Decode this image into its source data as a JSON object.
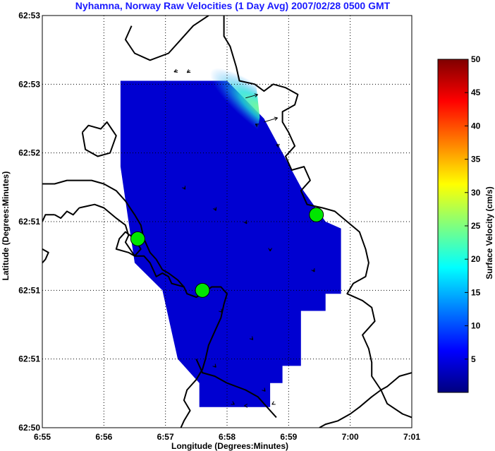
{
  "chart_data": {
    "type": "heatmap",
    "title": "Nyhamna, Norway Raw Velocities (1 Day Avg) 2007/02/28 0500 GMT",
    "xlabel": "Longitude (Degrees:Minutes)",
    "ylabel": "Latitude (Degrees:Minutes)",
    "x_ticks": [
      "6:55",
      "6:56",
      "6:57",
      "6:58",
      "6:59",
      "7:00",
      "7:01"
    ],
    "y_ticks": [
      "62:50",
      "62:51",
      "62:51",
      "62:51",
      "62:52",
      "62:53",
      "62:53"
    ],
    "xlim": [
      0,
      6
    ],
    "ylim": [
      0,
      6
    ],
    "grid": true,
    "colorbar": {
      "label": "Surface Velocity (cm/s)",
      "ticks": [
        "5",
        "10",
        "15",
        "20",
        "25",
        "30",
        "35",
        "40",
        "45",
        "50"
      ],
      "range": [
        0,
        50
      ],
      "colormap": [
        "#00007f",
        "#0000ff",
        "#007fff",
        "#00ffff",
        "#7fff7f",
        "#ffff00",
        "#ff7f00",
        "#ff0000",
        "#7f0000"
      ]
    },
    "field_polygon": [
      [
        1.27,
        5.05
      ],
      [
        3.0,
        5.05
      ],
      [
        3.6,
        4.5
      ],
      [
        4.2,
        3.5
      ],
      [
        4.6,
        3.0
      ],
      [
        4.85,
        2.9
      ],
      [
        4.85,
        1.95
      ],
      [
        4.6,
        1.95
      ],
      [
        4.6,
        1.7
      ],
      [
        4.2,
        1.7
      ],
      [
        4.2,
        0.9
      ],
      [
        3.9,
        0.9
      ],
      [
        3.9,
        0.65
      ],
      [
        3.7,
        0.65
      ],
      [
        3.7,
        0.3
      ],
      [
        2.55,
        0.3
      ],
      [
        2.55,
        0.65
      ],
      [
        2.2,
        1.0
      ],
      [
        1.95,
        2.0
      ],
      [
        1.5,
        2.4
      ],
      [
        1.4,
        3.0
      ],
      [
        1.27,
        3.8
      ]
    ],
    "field_speed_cm_s": {
      "typical": 4,
      "nearshore_max": 13,
      "hotspot": [
        3.6,
        4.6
      ]
    },
    "stations": [
      [
        1.55,
        2.75
      ],
      [
        2.6,
        2.0
      ],
      [
        4.45,
        3.1
      ]
    ],
    "vectors": [
      {
        "x": 3.3,
        "y": 4.8,
        "u": 0.2,
        "v": 0.05
      },
      {
        "x": 3.6,
        "y": 4.45,
        "u": 0.22,
        "v": 0.06
      },
      {
        "x": 3.85,
        "y": 4.1,
        "u": -0.05,
        "v": 0.02
      },
      {
        "x": 3.5,
        "y": 4.4,
        "u": -0.04,
        "v": 0.02
      },
      {
        "x": 2.2,
        "y": 5.2,
        "u": -0.06,
        "v": -0.02
      },
      {
        "x": 2.4,
        "y": 5.2,
        "u": -0.05,
        "v": -0.03
      },
      {
        "x": 2.3,
        "y": 3.5,
        "u": 0.02,
        "v": -0.03
      },
      {
        "x": 2.8,
        "y": 3.2,
        "u": 0.02,
        "v": -0.04
      },
      {
        "x": 3.3,
        "y": 3.0,
        "u": 0.02,
        "v": -0.03
      },
      {
        "x": 3.7,
        "y": 2.6,
        "u": 0.0,
        "v": -0.03
      },
      {
        "x": 4.4,
        "y": 2.3,
        "u": 0.02,
        "v": -0.03
      },
      {
        "x": 2.9,
        "y": 1.7,
        "u": 0.02,
        "v": -0.02
      },
      {
        "x": 3.4,
        "y": 1.3,
        "u": 0.02,
        "v": -0.02
      },
      {
        "x": 2.8,
        "y": 0.9,
        "u": 0.02,
        "v": -0.02
      },
      {
        "x": 3.6,
        "y": 0.55,
        "u": 0.02,
        "v": -0.02
      },
      {
        "x": 3.1,
        "y": 0.35,
        "u": 0.02,
        "v": -0.01
      },
      {
        "x": 3.3,
        "y": 0.32,
        "u": -0.02,
        "v": 0.0
      },
      {
        "x": 3.75,
        "y": 0.35,
        "u": -0.02,
        "v": -0.01
      }
    ],
    "coastline": [
      [
        [
          2.7,
          6.0
        ],
        [
          2.45,
          5.85
        ],
        [
          2.25,
          5.65
        ],
        [
          2.05,
          5.45
        ],
        [
          1.75,
          5.35
        ],
        [
          1.5,
          5.45
        ],
        [
          1.35,
          5.65
        ],
        [
          1.45,
          5.85
        ]
      ],
      [
        [
          2.95,
          6.0
        ],
        [
          2.95,
          5.7
        ],
        [
          3.05,
          5.55
        ],
        [
          3.15,
          5.25
        ],
        [
          3.2,
          5.05
        ],
        [
          3.45,
          5.0
        ],
        [
          3.6,
          4.9
        ],
        [
          3.75,
          5.0
        ],
        [
          3.95,
          4.95
        ],
        [
          4.15,
          4.85
        ],
        [
          4.1,
          4.7
        ],
        [
          3.9,
          4.6
        ],
        [
          3.9,
          4.45
        ],
        [
          4.0,
          4.3
        ],
        [
          4.1,
          4.1
        ],
        [
          3.95,
          3.95
        ],
        [
          4.05,
          3.75
        ],
        [
          4.25,
          3.8
        ],
        [
          4.35,
          3.6
        ],
        [
          4.2,
          3.45
        ],
        [
          4.3,
          3.25
        ],
        [
          4.55,
          3.2
        ],
        [
          4.75,
          3.15
        ],
        [
          4.95,
          3.0
        ],
        [
          5.15,
          2.85
        ],
        [
          5.25,
          2.6
        ],
        [
          5.3,
          2.4
        ],
        [
          5.25,
          2.2
        ],
        [
          5.05,
          2.1
        ],
        [
          4.95,
          1.95
        ],
        [
          5.2,
          1.85
        ],
        [
          5.35,
          1.75
        ],
        [
          5.4,
          1.55
        ],
        [
          5.2,
          1.35
        ],
        [
          5.3,
          1.15
        ],
        [
          5.35,
          0.95
        ],
        [
          5.35,
          0.75
        ],
        [
          5.5,
          0.55
        ],
        [
          5.6,
          0.35
        ],
        [
          5.85,
          0.2
        ],
        [
          6.0,
          0.15
        ]
      ],
      [
        [
          6.0,
          0.8
        ],
        [
          5.8,
          0.75
        ],
        [
          5.6,
          0.6
        ],
        [
          5.5,
          0.55
        ],
        [
          5.35,
          0.45
        ],
        [
          5.15,
          0.3
        ],
        [
          5.0,
          0.2
        ],
        [
          4.8,
          0.1
        ],
        [
          4.6,
          0.05
        ],
        [
          4.5,
          0.0
        ]
      ],
      [
        [
          0.0,
          3.55
        ],
        [
          0.2,
          3.55
        ],
        [
          0.4,
          3.6
        ],
        [
          0.6,
          3.6
        ],
        [
          0.8,
          3.6
        ],
        [
          1.0,
          3.55
        ],
        [
          1.2,
          3.45
        ],
        [
          1.35,
          3.3
        ],
        [
          1.5,
          3.1
        ],
        [
          1.6,
          2.95
        ],
        [
          1.65,
          2.75
        ],
        [
          1.75,
          2.55
        ],
        [
          1.85,
          2.45
        ],
        [
          1.95,
          2.3
        ],
        [
          2.05,
          2.25
        ],
        [
          2.2,
          2.15
        ],
        [
          2.3,
          2.05
        ],
        [
          2.35,
          1.95
        ],
        [
          2.5,
          1.9
        ],
        [
          2.6,
          1.95
        ],
        [
          2.75,
          2.05
        ],
        [
          2.9,
          2.05
        ],
        [
          3.0,
          1.95
        ],
        [
          2.95,
          1.8
        ],
        [
          2.9,
          1.6
        ],
        [
          2.8,
          1.4
        ],
        [
          2.7,
          1.2
        ],
        [
          2.65,
          1.0
        ],
        [
          2.6,
          0.85
        ],
        [
          2.5,
          0.7
        ],
        [
          2.35,
          0.55
        ],
        [
          2.3,
          0.4
        ],
        [
          2.4,
          0.25
        ],
        [
          2.3,
          0.1
        ],
        [
          2.25,
          0.0
        ]
      ],
      [
        [
          0.6,
          3.2
        ],
        [
          0.85,
          3.25
        ],
        [
          1.0,
          3.2
        ],
        [
          1.2,
          3.05
        ],
        [
          1.35,
          2.95
        ],
        [
          1.4,
          2.8
        ],
        [
          1.35,
          2.7
        ],
        [
          1.5,
          2.5
        ],
        [
          1.65,
          2.5
        ],
        [
          1.75,
          2.4
        ],
        [
          1.8,
          2.3
        ],
        [
          1.85,
          2.2
        ],
        [
          1.95,
          2.25
        ],
        [
          2.05,
          2.2
        ],
        [
          2.1,
          2.1
        ],
        [
          2.3,
          2.05
        ]
      ],
      [
        [
          0.6,
          3.2
        ],
        [
          0.5,
          3.1
        ],
        [
          0.4,
          3.15
        ],
        [
          0.3,
          3.05
        ],
        [
          0.2,
          3.1
        ]
      ],
      [
        [
          1.5,
          2.75
        ],
        [
          1.6,
          2.6
        ],
        [
          1.5,
          2.5
        ],
        [
          1.4,
          2.55
        ],
        [
          1.2,
          2.6
        ],
        [
          1.25,
          2.75
        ],
        [
          1.35,
          2.85
        ],
        [
          1.5,
          2.75
        ]
      ],
      [
        [
          0.2,
          3.1
        ],
        [
          0.05,
          3.1
        ],
        [
          0.0,
          3.0
        ]
      ],
      [
        [
          0.0,
          2.6
        ],
        [
          0.1,
          2.55
        ],
        [
          0.05,
          2.45
        ],
        [
          0.0,
          2.4
        ]
      ],
      [
        [
          0.65,
          4.3
        ],
        [
          0.75,
          4.4
        ],
        [
          0.95,
          4.35
        ],
        [
          1.05,
          4.45
        ],
        [
          1.2,
          4.25
        ],
        [
          1.1,
          4.0
        ],
        [
          0.9,
          3.95
        ],
        [
          0.7,
          4.05
        ],
        [
          0.65,
          4.3
        ]
      ],
      [
        [
          2.5,
          1.0
        ],
        [
          2.6,
          0.8
        ],
        [
          2.8,
          0.75
        ],
        [
          3.0,
          0.65
        ],
        [
          3.3,
          0.55
        ],
        [
          3.5,
          0.45
        ],
        [
          3.6,
          0.35
        ],
        [
          3.7,
          0.25
        ],
        [
          3.8,
          0.15
        ]
      ]
    ]
  }
}
